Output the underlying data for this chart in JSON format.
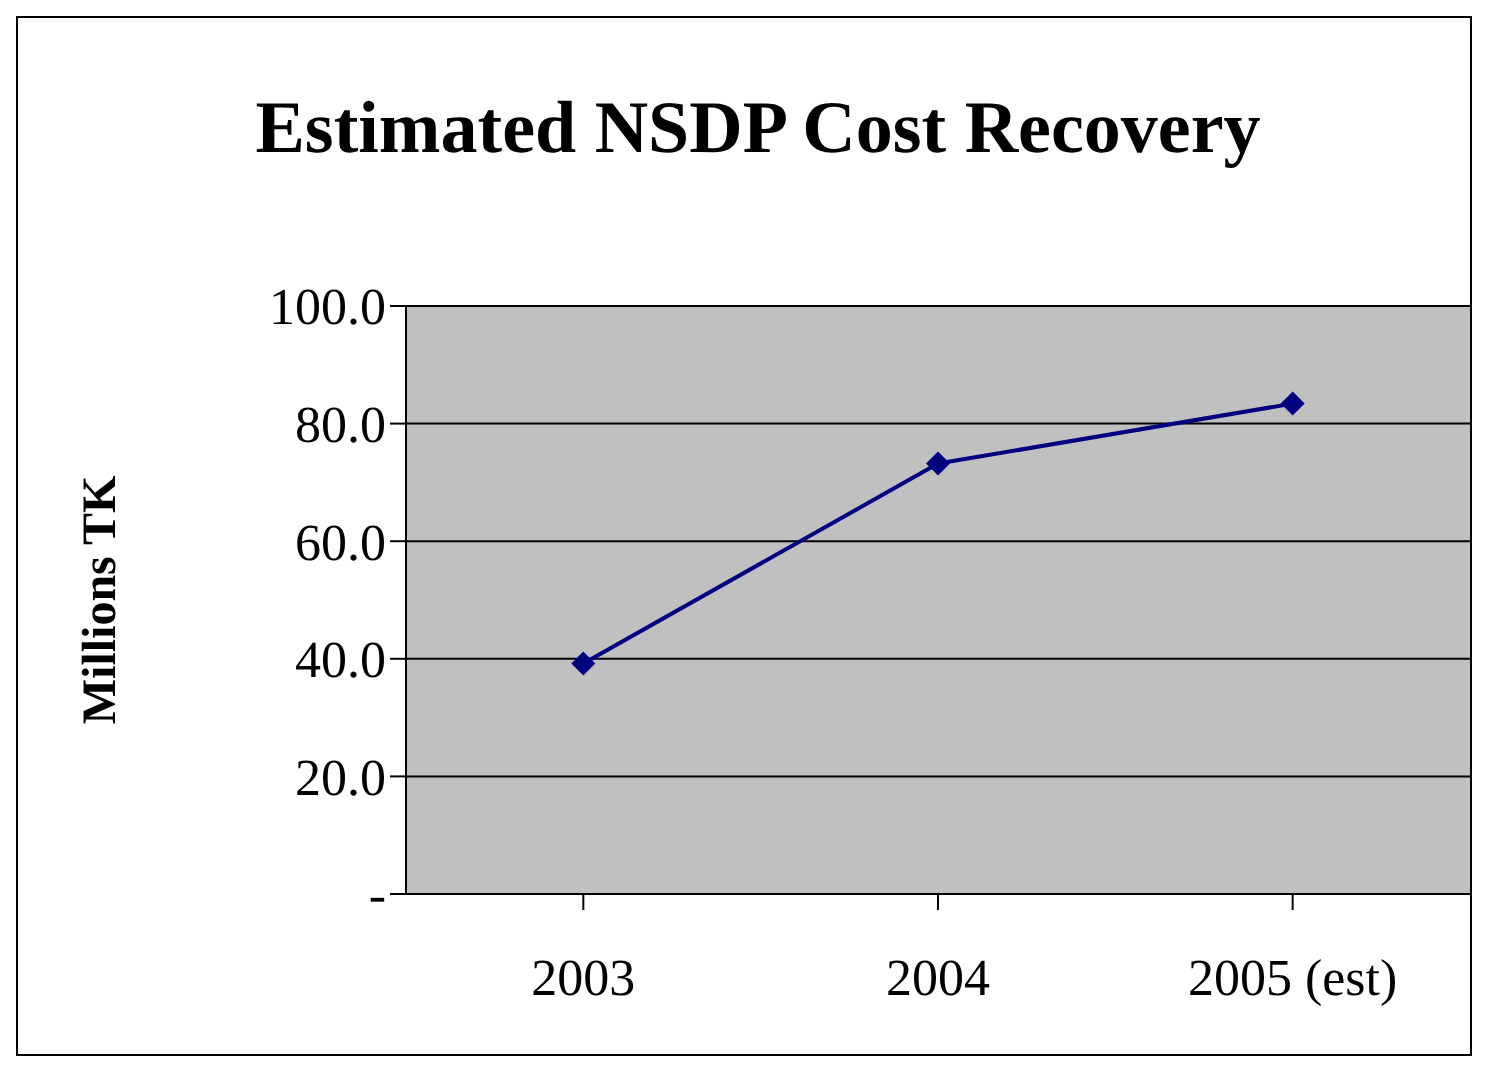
{
  "chart_data": {
    "type": "line",
    "title": "Estimated NSDP Cost Recovery",
    "ylabel": "Millions TK",
    "categories": [
      "2003",
      "2004",
      "2005 (est)"
    ],
    "series": [
      {
        "color": "#000080",
        "values": [
          39.2,
          73.2,
          83.4
        ]
      }
    ],
    "ylim": [
      0,
      100
    ],
    "yticks": [
      {
        "value": 0,
        "label": "-"
      },
      {
        "value": 20,
        "label": "20.0"
      },
      {
        "value": 40,
        "label": "40.0"
      },
      {
        "value": 60,
        "label": "60.0"
      },
      {
        "value": 80,
        "label": "80.0"
      },
      {
        "value": 100,
        "label": "100.0"
      }
    ],
    "grid": "y",
    "marker": "diamond",
    "line_style": "solid",
    "legend": false
  }
}
